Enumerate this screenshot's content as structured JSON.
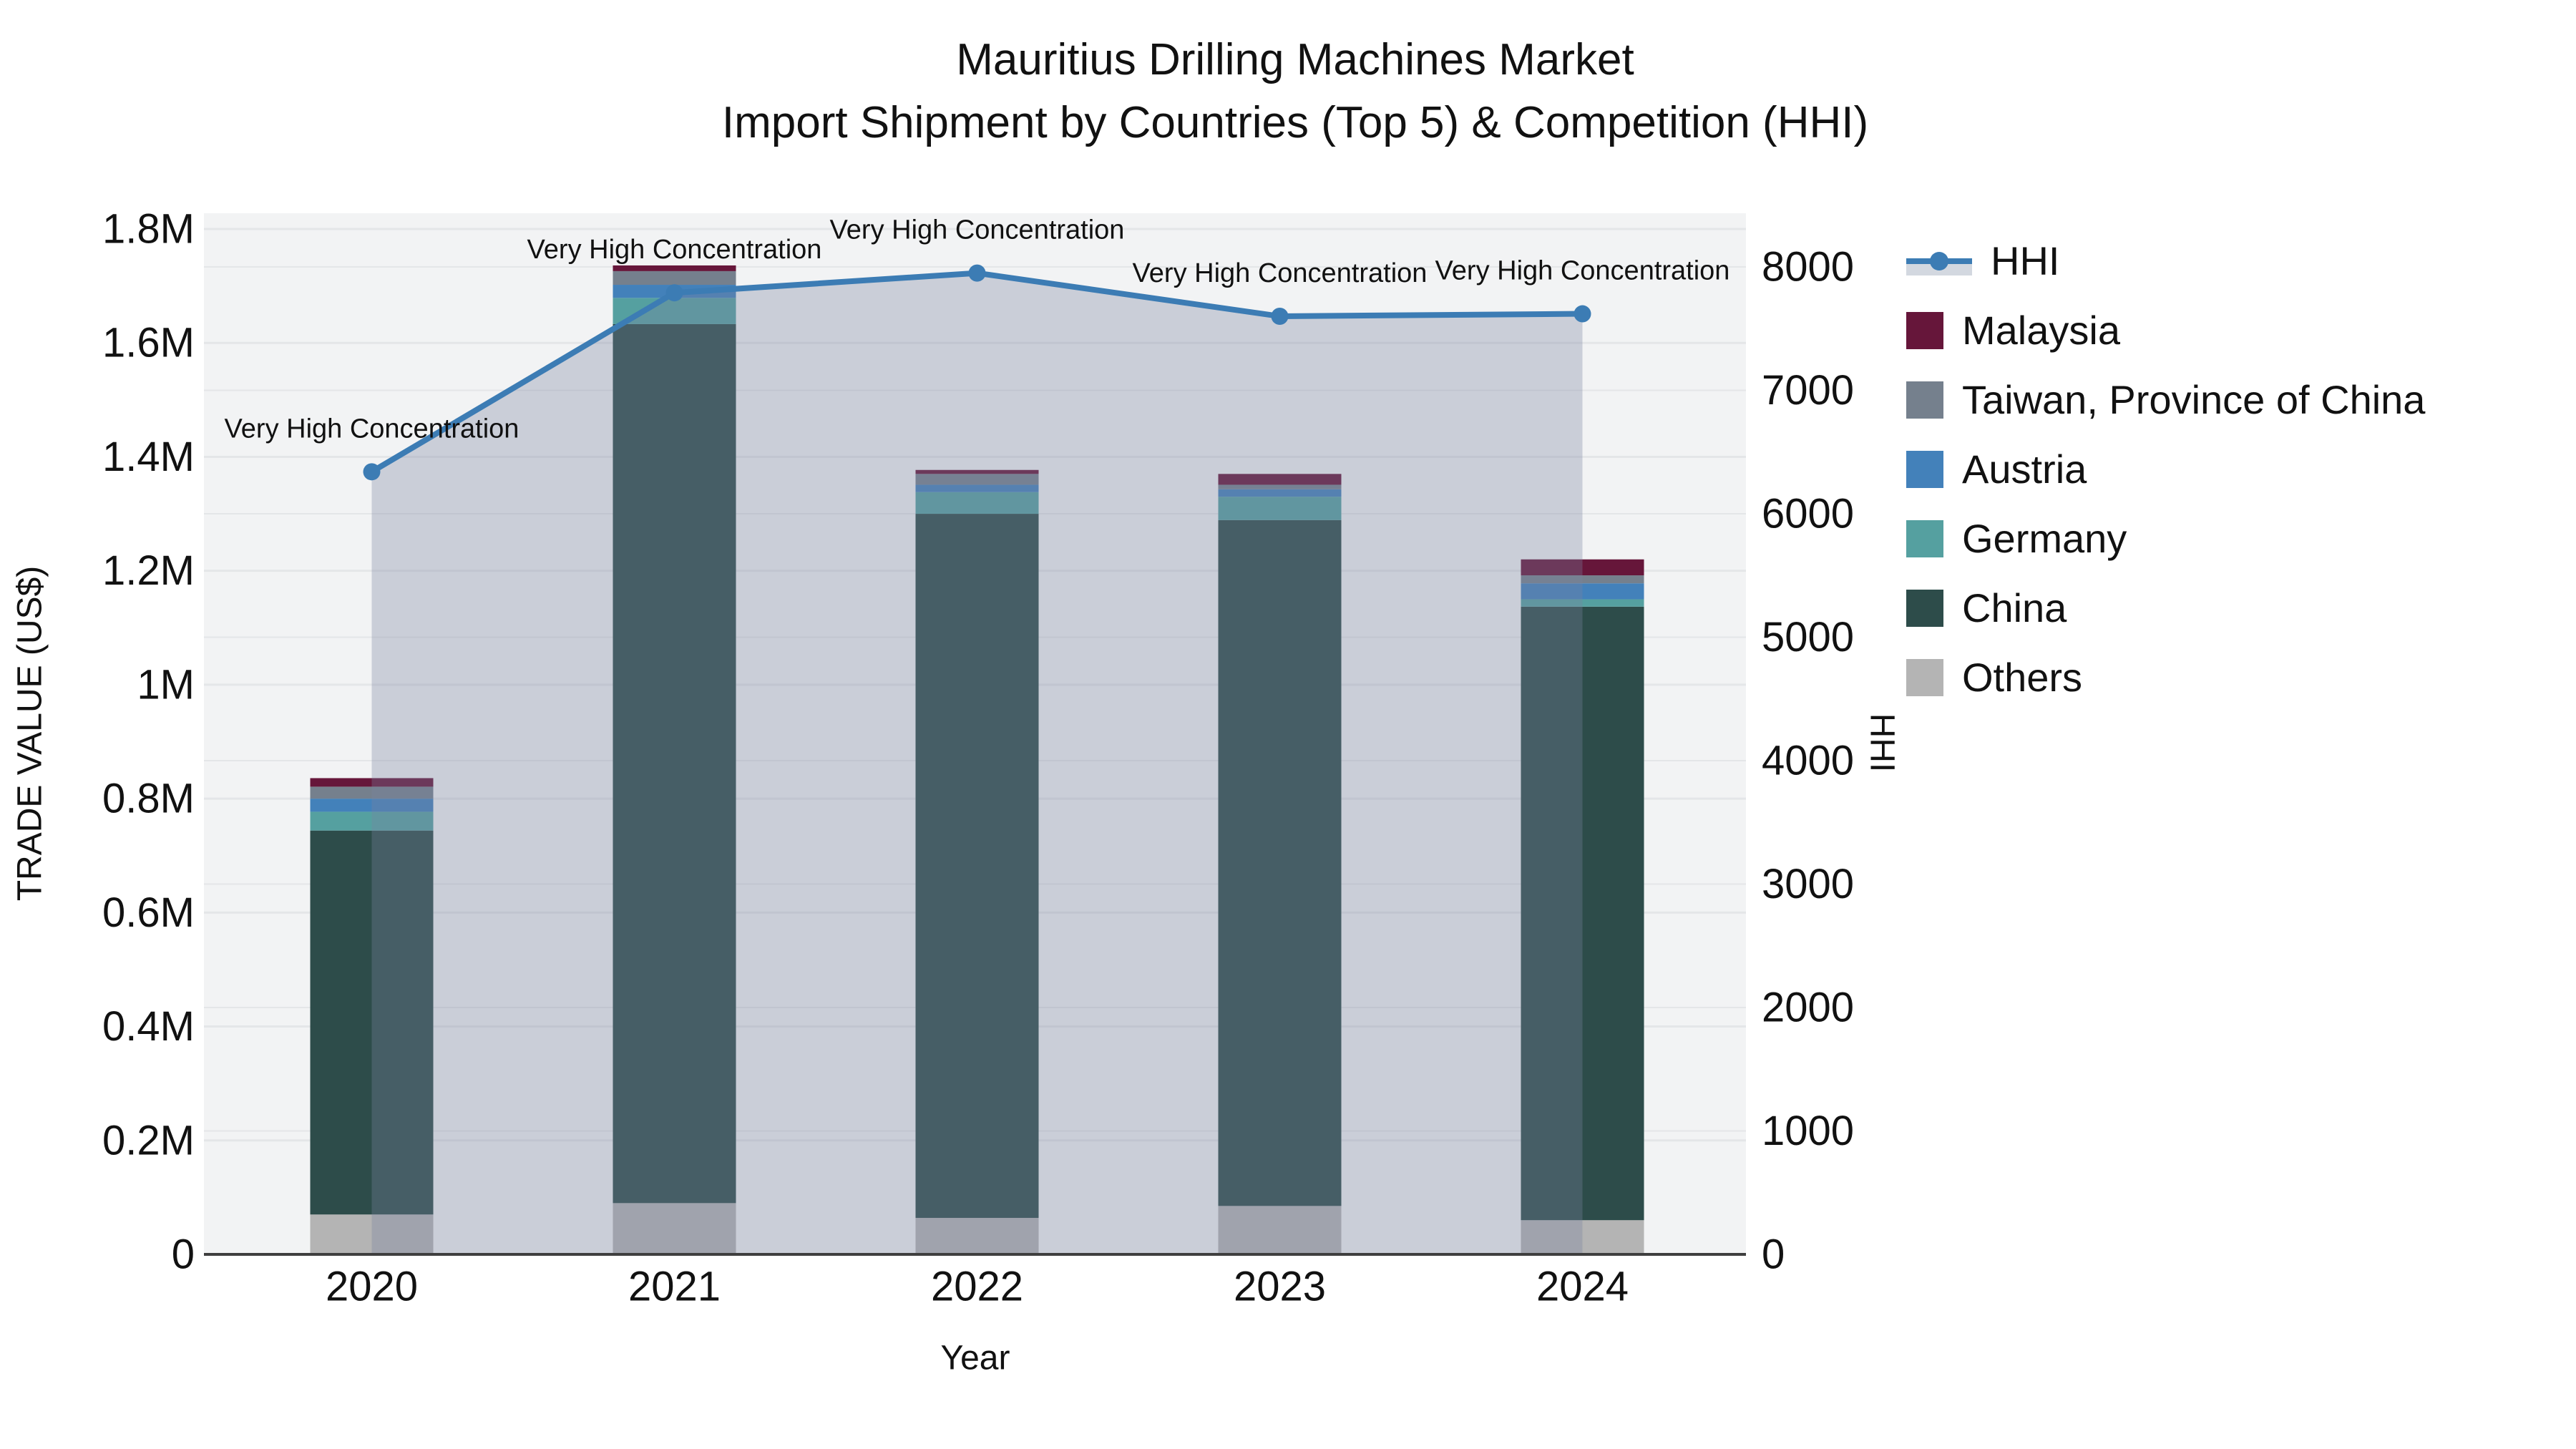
{
  "title": {
    "line1": "Mauritius Drilling Machines Market",
    "line2": "Import Shipment by Countries (Top 5) & Competition (HHI)"
  },
  "axes": {
    "y_title": "TRADE VALUE (US$)",
    "x_title": "Year",
    "y2_title": "HHI",
    "y_tick_labels": [
      "0",
      "0.2M",
      "0.4M",
      "0.6M",
      "0.8M",
      "1M",
      "1.2M",
      "1.4M",
      "1.6M",
      "1.8M"
    ],
    "y_tick_values": [
      0,
      200000,
      400000,
      600000,
      800000,
      1000000,
      1200000,
      1400000,
      1600000,
      1800000
    ],
    "y2_tick_labels": [
      "0",
      "1000",
      "2000",
      "3000",
      "4000",
      "5000",
      "6000",
      "7000",
      "8000"
    ],
    "y2_tick_values": [
      0,
      1000,
      2000,
      3000,
      4000,
      5000,
      6000,
      7000,
      8000
    ]
  },
  "chart_data": {
    "type": "bar",
    "subtype": "stacked-bars-with-line-on-secondary-axis",
    "categories": [
      "2020",
      "2021",
      "2022",
      "2023",
      "2024"
    ],
    "xlabel": "Year",
    "ylabel": "TRADE VALUE (US$)",
    "y2label": "HHI",
    "ylim": [
      0,
      1824000
    ],
    "y2lim": [
      0,
      8420
    ],
    "grid": true,
    "legend_position": "right",
    "stack_order_bottom_to_top": [
      "Others",
      "China",
      "Germany",
      "Austria",
      "Taiwan, Province of China",
      "Malaysia"
    ],
    "series": [
      {
        "name": "Malaysia",
        "color": "#66163A",
        "values": [
          15000,
          10000,
          7000,
          19000,
          28000
        ]
      },
      {
        "name": "Taiwan, Province of China",
        "color": "#75808D",
        "values": [
          21000,
          24000,
          19000,
          8000,
          14000
        ]
      },
      {
        "name": "Austria",
        "color": "#4381BA",
        "values": [
          23000,
          23000,
          13000,
          13000,
          28000
        ]
      },
      {
        "name": "Germany",
        "color": "#55A0A0",
        "values": [
          33000,
          46000,
          38000,
          41000,
          13000
        ]
      },
      {
        "name": "China",
        "color": "#2D4C4A",
        "values": [
          674000,
          1543000,
          1236000,
          1204000,
          1077000
        ]
      },
      {
        "name": "Others",
        "color": "#B4B4B4",
        "values": [
          70000,
          90000,
          64000,
          85000,
          60000
        ]
      }
    ],
    "bar_totals_estimate": [
      836000,
      1736000,
      1377000,
      1370000,
      1220000
    ],
    "line_series": {
      "name": "HHI",
      "axis": "y2",
      "color": "#3C7CB4",
      "area_fill_color": "rgba(120,130,160,0.33)",
      "values": [
        6340,
        7790,
        7950,
        7600,
        7620
      ]
    },
    "annotations": [
      {
        "text": "Very High Concentration",
        "category": "2020"
      },
      {
        "text": "Very High Concentration",
        "category": "2021"
      },
      {
        "text": "Very High Concentration",
        "category": "2022"
      },
      {
        "text": "Very High Concentration",
        "category": "2023"
      },
      {
        "text": "Very High Concentration",
        "category": "2024"
      }
    ]
  },
  "legend": {
    "items": [
      {
        "label": "HHI",
        "type": "line",
        "color": "#3C7CB4"
      },
      {
        "label": "Malaysia",
        "type": "swatch",
        "color": "#66163A"
      },
      {
        "label": "Taiwan, Province of China",
        "type": "swatch",
        "color": "#75808D"
      },
      {
        "label": "Austria",
        "type": "swatch",
        "color": "#4381BA"
      },
      {
        "label": "Germany",
        "type": "swatch",
        "color": "#55A0A0"
      },
      {
        "label": "China",
        "type": "swatch",
        "color": "#2D4C4A"
      },
      {
        "label": "Others",
        "type": "swatch",
        "color": "#B4B4B4"
      }
    ]
  },
  "colors": {
    "plot_background": "#F2F3F4",
    "gridline": "#E4E6E8",
    "axis_line": "#3F3F3F",
    "text": "#111111"
  }
}
